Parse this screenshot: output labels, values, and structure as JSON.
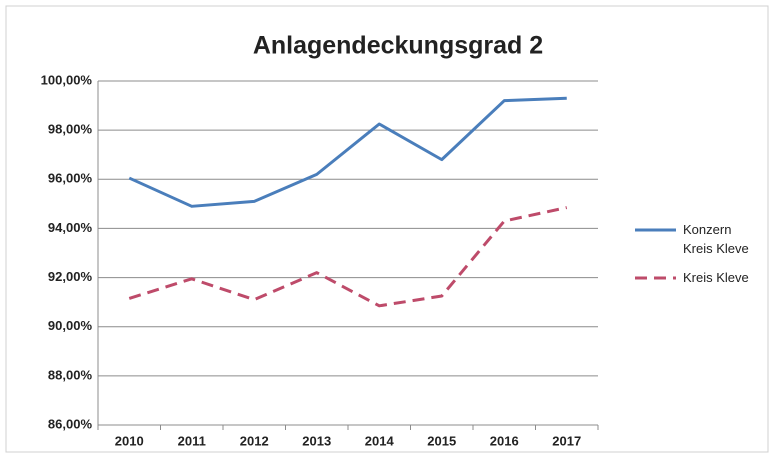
{
  "chart_data": {
    "type": "line",
    "title": "Anlagendeckungsgrad  2",
    "categories": [
      "2010",
      "2011",
      "2012",
      "2013",
      "2014",
      "2015",
      "2016",
      "2017"
    ],
    "series": [
      {
        "name": "Konzern Kreis Kleve",
        "color": "#4a7ebb",
        "dash": false,
        "values": [
          96.05,
          94.9,
          95.1,
          96.2,
          98.25,
          96.8,
          99.2,
          99.3
        ]
      },
      {
        "name": "Kreis Kleve",
        "color": "#be4b6a",
        "dash": true,
        "values": [
          91.15,
          91.95,
          91.1,
          92.2,
          90.85,
          91.25,
          94.3,
          94.85
        ]
      }
    ],
    "ylim": [
      86,
      100
    ],
    "yticks": [
      {
        "value": 86,
        "label": "86,00%"
      },
      {
        "value": 88,
        "label": "88,00%"
      },
      {
        "value": 90,
        "label": "90,00%"
      },
      {
        "value": 92,
        "label": "92,00%"
      },
      {
        "value": 94,
        "label": "94,00%"
      },
      {
        "value": 96,
        "label": "96,00%"
      },
      {
        "value": 98,
        "label": "98,00%"
      },
      {
        "value": 100,
        "label": "100,00%"
      }
    ],
    "grid": true,
    "legend": "right"
  }
}
